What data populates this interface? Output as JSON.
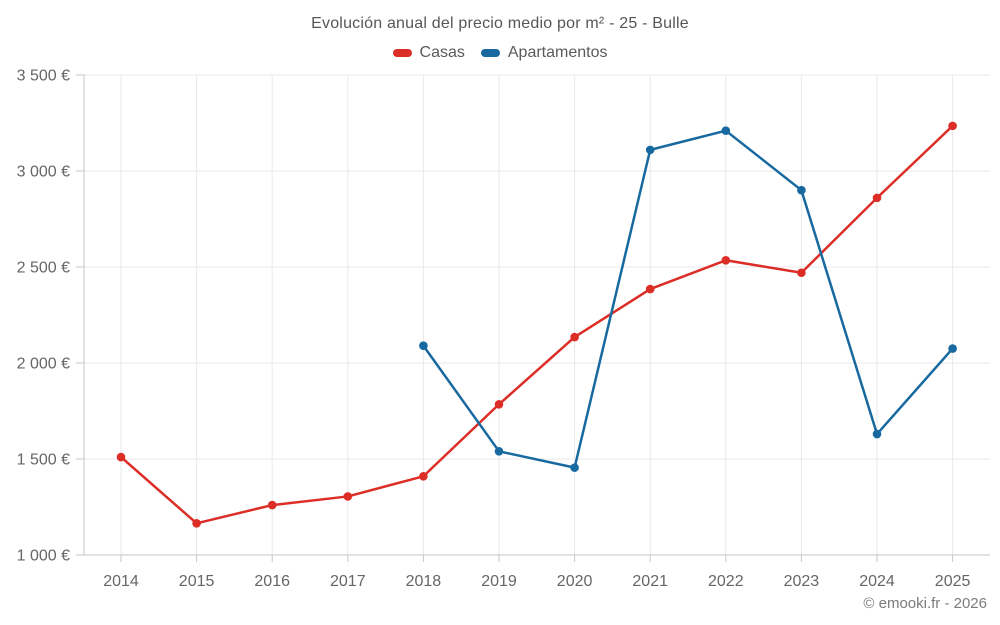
{
  "title": "Evolución anual del precio medio por m² - 25 - Bulle",
  "attribution": "© emooki.fr - 2026",
  "chart_data": {
    "type": "line",
    "title": "Evolución anual del precio medio por m² - 25 - Bulle",
    "categories": [
      2014,
      2015,
      2016,
      2017,
      2018,
      2019,
      2020,
      2021,
      2022,
      2023,
      2024,
      2025
    ],
    "series": [
      {
        "name": "Casas",
        "color": "#dc2e27",
        "values": [
          1510,
          1165,
          1260,
          1305,
          1410,
          1785,
          2135,
          2385,
          2535,
          2470,
          2860,
          3235
        ]
      },
      {
        "name": "Apartamentos",
        "color": "#17699f",
        "values": [
          null,
          null,
          null,
          null,
          2090,
          1540,
          1455,
          3110,
          3210,
          2900,
          1630,
          2075
        ]
      }
    ],
    "y_ticks": {
      "values": [
        1000,
        1500,
        2000,
        2500,
        3000,
        3500
      ],
      "labels": [
        "1 000 €",
        "1 500 €",
        "2 000 €",
        "2 500 €",
        "3 000 €",
        "3 500 €"
      ]
    },
    "ylim": [
      1000,
      3500
    ],
    "xlabel": "",
    "ylabel": "",
    "grid": true,
    "legend_position": "top",
    "colors": {
      "grid": "#e9e9e9",
      "axis": "#c6c6c6",
      "tick_text": "#666669",
      "background": "#ffffff"
    }
  }
}
